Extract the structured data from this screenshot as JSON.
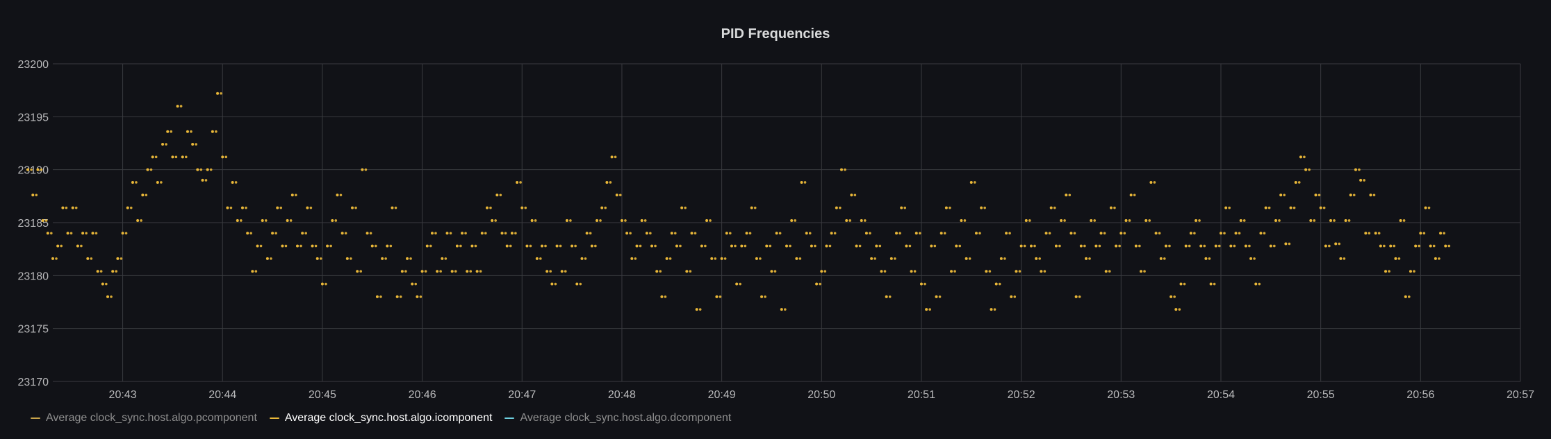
{
  "colors": {
    "background": "#111217",
    "grid": "#3a3b40",
    "series_icomponent": "#eab839",
    "series_pcomponent": "#c9a44b",
    "series_dcomponent": "#6ed0e0"
  },
  "chart_data": {
    "type": "scatter",
    "title": "PID Frequencies",
    "xlabel": "",
    "ylabel": "",
    "ylim": [
      23170,
      23200
    ],
    "yticks": [
      23170,
      23175,
      23180,
      23185,
      23190,
      23195,
      23200
    ],
    "xlim": [
      0,
      14.3
    ],
    "xtick_labels": [
      "20:43",
      "20:44",
      "20:45",
      "20:46",
      "20:47",
      "20:48",
      "20:49",
      "20:50",
      "20:51",
      "20:52",
      "20:53",
      "20:54",
      "20:55",
      "20:56",
      "20:57"
    ],
    "xtick_positions": [
      1,
      2,
      3,
      4,
      5,
      6,
      7,
      8,
      9,
      10,
      11,
      12,
      13,
      14,
      15
    ],
    "legend_position": "bottom-left",
    "series": [
      {
        "name": "Average clock_sync.host.algo.pcomponent",
        "color": "#c9a44b",
        "hidden": true,
        "points": []
      },
      {
        "name": "Average clock_sync.host.algo.icomponent",
        "color": "#eab839",
        "hidden": false,
        "points": [
          [
            0.05,
            23190.0
          ],
          [
            0.1,
            23187.6
          ],
          [
            0.15,
            23190.0
          ],
          [
            0.2,
            23185.2
          ],
          [
            0.25,
            23184.0
          ],
          [
            0.3,
            23181.6
          ],
          [
            0.35,
            23182.8
          ],
          [
            0.4,
            23186.4
          ],
          [
            0.45,
            23184.0
          ],
          [
            0.5,
            23186.4
          ],
          [
            0.55,
            23182.8
          ],
          [
            0.6,
            23184.0
          ],
          [
            0.65,
            23181.6
          ],
          [
            0.7,
            23184.0
          ],
          [
            0.75,
            23180.4
          ],
          [
            0.8,
            23179.2
          ],
          [
            0.85,
            23178.0
          ],
          [
            0.9,
            23180.4
          ],
          [
            0.95,
            23181.6
          ],
          [
            1.0,
            23184.0
          ],
          [
            1.05,
            23186.4
          ],
          [
            1.1,
            23188.8
          ],
          [
            1.15,
            23185.2
          ],
          [
            1.2,
            23187.6
          ],
          [
            1.25,
            23190.0
          ],
          [
            1.3,
            23191.2
          ],
          [
            1.35,
            23188.8
          ],
          [
            1.4,
            23192.4
          ],
          [
            1.45,
            23193.6
          ],
          [
            1.5,
            23191.2
          ],
          [
            1.55,
            23196.0
          ],
          [
            1.6,
            23191.2
          ],
          [
            1.65,
            23193.6
          ],
          [
            1.7,
            23192.4
          ],
          [
            1.75,
            23190.0
          ],
          [
            1.8,
            23189.0
          ],
          [
            1.85,
            23190.0
          ],
          [
            1.9,
            23193.6
          ],
          [
            1.95,
            23197.2
          ],
          [
            2.0,
            23191.2
          ],
          [
            2.05,
            23186.4
          ],
          [
            2.1,
            23188.8
          ],
          [
            2.15,
            23185.2
          ],
          [
            2.2,
            23186.4
          ],
          [
            2.25,
            23184.0
          ],
          [
            2.3,
            23180.4
          ],
          [
            2.35,
            23182.8
          ],
          [
            2.4,
            23185.2
          ],
          [
            2.45,
            23181.6
          ],
          [
            2.5,
            23184.0
          ],
          [
            2.55,
            23186.4
          ],
          [
            2.6,
            23182.8
          ],
          [
            2.65,
            23185.2
          ],
          [
            2.7,
            23187.6
          ],
          [
            2.75,
            23182.8
          ],
          [
            2.8,
            23184.0
          ],
          [
            2.85,
            23186.4
          ],
          [
            2.9,
            23182.8
          ],
          [
            2.95,
            23181.6
          ],
          [
            3.0,
            23179.2
          ],
          [
            3.05,
            23182.8
          ],
          [
            3.1,
            23185.2
          ],
          [
            3.15,
            23187.6
          ],
          [
            3.2,
            23184.0
          ],
          [
            3.25,
            23181.6
          ],
          [
            3.3,
            23186.4
          ],
          [
            3.35,
            23180.4
          ],
          [
            3.4,
            23190.0
          ],
          [
            3.45,
            23184.0
          ],
          [
            3.5,
            23182.8
          ],
          [
            3.55,
            23178.0
          ],
          [
            3.6,
            23181.6
          ],
          [
            3.65,
            23182.8
          ],
          [
            3.7,
            23186.4
          ],
          [
            3.75,
            23178.0
          ],
          [
            3.8,
            23180.4
          ],
          [
            3.85,
            23181.6
          ],
          [
            3.9,
            23179.2
          ],
          [
            3.95,
            23178.0
          ],
          [
            4.0,
            23180.4
          ],
          [
            4.05,
            23182.8
          ],
          [
            4.1,
            23184.0
          ],
          [
            4.15,
            23180.4
          ],
          [
            4.2,
            23181.6
          ],
          [
            4.25,
            23184.0
          ],
          [
            4.3,
            23180.4
          ],
          [
            4.35,
            23182.8
          ],
          [
            4.4,
            23184.0
          ],
          [
            4.45,
            23180.4
          ],
          [
            4.5,
            23182.8
          ],
          [
            4.55,
            23180.4
          ],
          [
            4.6,
            23184.0
          ],
          [
            4.65,
            23186.4
          ],
          [
            4.7,
            23185.2
          ],
          [
            4.75,
            23187.6
          ],
          [
            4.8,
            23184.0
          ],
          [
            4.85,
            23182.8
          ],
          [
            4.9,
            23184.0
          ],
          [
            4.95,
            23188.8
          ],
          [
            5.0,
            23186.4
          ],
          [
            5.05,
            23182.8
          ],
          [
            5.1,
            23185.2
          ],
          [
            5.15,
            23181.6
          ],
          [
            5.2,
            23182.8
          ],
          [
            5.25,
            23180.4
          ],
          [
            5.3,
            23179.2
          ],
          [
            5.35,
            23182.8
          ],
          [
            5.4,
            23180.4
          ],
          [
            5.45,
            23185.2
          ],
          [
            5.5,
            23182.8
          ],
          [
            5.55,
            23179.2
          ],
          [
            5.6,
            23181.6
          ],
          [
            5.65,
            23184.0
          ],
          [
            5.7,
            23182.8
          ],
          [
            5.75,
            23185.2
          ],
          [
            5.8,
            23186.4
          ],
          [
            5.85,
            23188.8
          ],
          [
            5.9,
            23191.2
          ],
          [
            5.95,
            23187.6
          ],
          [
            6.0,
            23185.2
          ],
          [
            6.05,
            23184.0
          ],
          [
            6.1,
            23181.6
          ],
          [
            6.15,
            23182.8
          ],
          [
            6.2,
            23185.2
          ],
          [
            6.25,
            23184.0
          ],
          [
            6.3,
            23182.8
          ],
          [
            6.35,
            23180.4
          ],
          [
            6.4,
            23178.0
          ],
          [
            6.45,
            23181.6
          ],
          [
            6.5,
            23184.0
          ],
          [
            6.55,
            23182.8
          ],
          [
            6.6,
            23186.4
          ],
          [
            6.65,
            23180.4
          ],
          [
            6.7,
            23184.0
          ],
          [
            6.75,
            23176.8
          ],
          [
            6.8,
            23182.8
          ],
          [
            6.85,
            23185.2
          ],
          [
            6.9,
            23181.6
          ],
          [
            6.95,
            23178.0
          ],
          [
            7.0,
            23181.6
          ],
          [
            7.05,
            23184.0
          ],
          [
            7.1,
            23182.8
          ],
          [
            7.15,
            23179.2
          ],
          [
            7.2,
            23182.8
          ],
          [
            7.25,
            23184.0
          ],
          [
            7.3,
            23186.4
          ],
          [
            7.35,
            23181.6
          ],
          [
            7.4,
            23178.0
          ],
          [
            7.45,
            23182.8
          ],
          [
            7.5,
            23180.4
          ],
          [
            7.55,
            23184.0
          ],
          [
            7.6,
            23176.8
          ],
          [
            7.65,
            23182.8
          ],
          [
            7.7,
            23185.2
          ],
          [
            7.75,
            23181.6
          ],
          [
            7.8,
            23188.8
          ],
          [
            7.85,
            23184.0
          ],
          [
            7.9,
            23182.8
          ],
          [
            7.95,
            23179.2
          ],
          [
            8.0,
            23180.4
          ],
          [
            8.05,
            23182.8
          ],
          [
            8.1,
            23184.0
          ],
          [
            8.15,
            23186.4
          ],
          [
            8.2,
            23190.0
          ],
          [
            8.25,
            23185.2
          ],
          [
            8.3,
            23187.6
          ],
          [
            8.35,
            23182.8
          ],
          [
            8.4,
            23185.2
          ],
          [
            8.45,
            23184.0
          ],
          [
            8.5,
            23181.6
          ],
          [
            8.55,
            23182.8
          ],
          [
            8.6,
            23180.4
          ],
          [
            8.65,
            23178.0
          ],
          [
            8.7,
            23181.6
          ],
          [
            8.75,
            23184.0
          ],
          [
            8.8,
            23186.4
          ],
          [
            8.85,
            23182.8
          ],
          [
            8.9,
            23180.4
          ],
          [
            8.95,
            23184.0
          ],
          [
            9.0,
            23179.2
          ],
          [
            9.05,
            23176.8
          ],
          [
            9.1,
            23182.8
          ],
          [
            9.15,
            23178.0
          ],
          [
            9.2,
            23184.0
          ],
          [
            9.25,
            23186.4
          ],
          [
            9.3,
            23180.4
          ],
          [
            9.35,
            23182.8
          ],
          [
            9.4,
            23185.2
          ],
          [
            9.45,
            23181.6
          ],
          [
            9.5,
            23188.8
          ],
          [
            9.55,
            23184.0
          ],
          [
            9.6,
            23186.4
          ],
          [
            9.65,
            23180.4
          ],
          [
            9.7,
            23176.8
          ],
          [
            9.75,
            23179.2
          ],
          [
            9.8,
            23181.6
          ],
          [
            9.85,
            23184.0
          ],
          [
            9.9,
            23178.0
          ],
          [
            9.95,
            23180.4
          ],
          [
            10.0,
            23182.8
          ],
          [
            10.05,
            23185.2
          ],
          [
            10.1,
            23182.8
          ],
          [
            10.15,
            23181.6
          ],
          [
            10.2,
            23180.4
          ],
          [
            10.25,
            23184.0
          ],
          [
            10.3,
            23186.4
          ],
          [
            10.35,
            23182.8
          ],
          [
            10.4,
            23185.2
          ],
          [
            10.45,
            23187.6
          ],
          [
            10.5,
            23184.0
          ],
          [
            10.55,
            23178.0
          ],
          [
            10.6,
            23182.8
          ],
          [
            10.65,
            23181.6
          ],
          [
            10.7,
            23185.2
          ],
          [
            10.75,
            23182.8
          ],
          [
            10.8,
            23184.0
          ],
          [
            10.85,
            23180.4
          ],
          [
            10.9,
            23186.4
          ],
          [
            10.95,
            23182.8
          ],
          [
            11.0,
            23184.0
          ],
          [
            11.05,
            23185.2
          ],
          [
            11.1,
            23187.6
          ],
          [
            11.15,
            23182.8
          ],
          [
            11.2,
            23180.4
          ],
          [
            11.25,
            23185.2
          ],
          [
            11.3,
            23188.8
          ],
          [
            11.35,
            23184.0
          ],
          [
            11.4,
            23181.6
          ],
          [
            11.45,
            23182.8
          ],
          [
            11.5,
            23178.0
          ],
          [
            11.55,
            23176.8
          ],
          [
            11.6,
            23179.2
          ],
          [
            11.65,
            23182.8
          ],
          [
            11.7,
            23184.0
          ],
          [
            11.75,
            23185.2
          ],
          [
            11.8,
            23182.8
          ],
          [
            11.85,
            23181.6
          ],
          [
            11.9,
            23179.2
          ],
          [
            11.95,
            23182.8
          ],
          [
            12.0,
            23184.0
          ],
          [
            12.05,
            23186.4
          ],
          [
            12.1,
            23182.8
          ],
          [
            12.15,
            23184.0
          ],
          [
            12.2,
            23185.2
          ],
          [
            12.25,
            23182.8
          ],
          [
            12.3,
            23181.6
          ],
          [
            12.35,
            23179.2
          ],
          [
            12.4,
            23184.0
          ],
          [
            12.45,
            23186.4
          ],
          [
            12.5,
            23182.8
          ],
          [
            12.55,
            23185.2
          ],
          [
            12.6,
            23187.6
          ],
          [
            12.65,
            23183.0
          ],
          [
            12.7,
            23186.4
          ],
          [
            12.75,
            23188.8
          ],
          [
            12.8,
            23191.2
          ],
          [
            12.85,
            23190.0
          ],
          [
            12.9,
            23185.2
          ],
          [
            12.95,
            23187.6
          ],
          [
            13.0,
            23186.4
          ],
          [
            13.05,
            23182.8
          ],
          [
            13.1,
            23185.2
          ],
          [
            13.15,
            23183.0
          ],
          [
            13.2,
            23181.6
          ],
          [
            13.25,
            23185.2
          ],
          [
            13.3,
            23187.6
          ],
          [
            13.35,
            23190.0
          ],
          [
            13.4,
            23189.0
          ],
          [
            13.45,
            23184.0
          ],
          [
            13.5,
            23187.6
          ],
          [
            13.55,
            23184.0
          ],
          [
            13.6,
            23182.8
          ],
          [
            13.65,
            23180.4
          ],
          [
            13.7,
            23182.8
          ],
          [
            13.75,
            23181.6
          ],
          [
            13.8,
            23185.2
          ],
          [
            13.85,
            23178.0
          ],
          [
            13.9,
            23180.4
          ],
          [
            13.95,
            23182.8
          ],
          [
            14.0,
            23184.0
          ],
          [
            14.05,
            23186.4
          ],
          [
            14.1,
            23182.8
          ],
          [
            14.15,
            23181.6
          ],
          [
            14.2,
            23184.0
          ],
          [
            14.25,
            23182.8
          ]
        ]
      },
      {
        "name": "Average clock_sync.host.algo.dcomponent",
        "color": "#6ed0e0",
        "hidden": true,
        "points": []
      }
    ]
  }
}
